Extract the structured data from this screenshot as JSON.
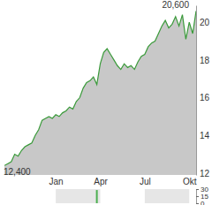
{
  "chart_data": [
    {
      "type": "area",
      "categories": [
        null,
        null,
        null,
        null,
        null,
        null,
        null,
        null,
        null,
        null,
        null,
        null,
        null,
        null,
        null,
        "Jan",
        null,
        null,
        null,
        null,
        null,
        null,
        null,
        null,
        null,
        null,
        null,
        null,
        "Apr",
        null,
        null,
        null,
        null,
        null,
        null,
        null,
        null,
        null,
        null,
        null,
        null,
        "Jul",
        null,
        null,
        null,
        null,
        null,
        null,
        null,
        null,
        null,
        null,
        null,
        null,
        "Okt",
        null,
        null
      ],
      "values": [
        12.4,
        12.5,
        12.6,
        13.0,
        12.9,
        13.2,
        13.4,
        13.5,
        13.6,
        14.0,
        14.3,
        14.8,
        14.9,
        15.0,
        14.9,
        15.1,
        15.0,
        15.2,
        15.3,
        15.5,
        15.4,
        15.8,
        16.0,
        16.5,
        16.8,
        16.9,
        17.1,
        16.7,
        17.8,
        18.4,
        18.6,
        18.3,
        18.0,
        17.7,
        17.5,
        17.8,
        17.6,
        17.7,
        17.5,
        17.9,
        18.2,
        18.3,
        18.7,
        18.9,
        19.0,
        19.4,
        19.8,
        20.1,
        19.7,
        19.9,
        20.3,
        19.8,
        20.4,
        19.1,
        20.0,
        19.4,
        20.6
      ],
      "color": "#3a9a3a",
      "ylim": [
        11.9,
        20.9
      ],
      "yticks": [
        12,
        14,
        16,
        18,
        20
      ],
      "grid": false,
      "annotations": [
        {
          "label": "12,400",
          "value": 12.4
        },
        {
          "label": "20,600",
          "value": 20.6
        }
      ]
    },
    {
      "type": "bar",
      "categories": [
        null,
        null,
        null,
        null,
        null,
        null,
        null,
        null,
        null,
        null,
        null,
        null,
        null,
        null,
        null,
        null,
        null,
        null,
        null,
        null,
        null,
        null,
        null,
        null,
        null,
        null,
        null,
        null,
        null,
        null,
        null,
        null,
        null,
        null,
        null,
        null,
        null,
        null,
        null,
        null,
        null,
        null,
        null,
        null,
        null,
        null,
        null,
        null,
        null,
        null,
        null,
        null,
        null,
        null,
        null,
        null,
        null
      ],
      "values": [
        0,
        0,
        0,
        0,
        0,
        0,
        0,
        0,
        0,
        0,
        0,
        0,
        0,
        0,
        0,
        0,
        0,
        0,
        0,
        0,
        0,
        0,
        0,
        0,
        0,
        0,
        0,
        28,
        0,
        0,
        0,
        0,
        0,
        0,
        0,
        0,
        0,
        0,
        0,
        0,
        0,
        0,
        0,
        0,
        0,
        0,
        0,
        0,
        0,
        0,
        0,
        0,
        0,
        0,
        0,
        0,
        0
      ],
      "color": "#4caf50",
      "ylim": [
        0,
        30
      ],
      "yticks": [
        0,
        15,
        30
      ],
      "grid": false,
      "tick_labels": "y"
    }
  ]
}
